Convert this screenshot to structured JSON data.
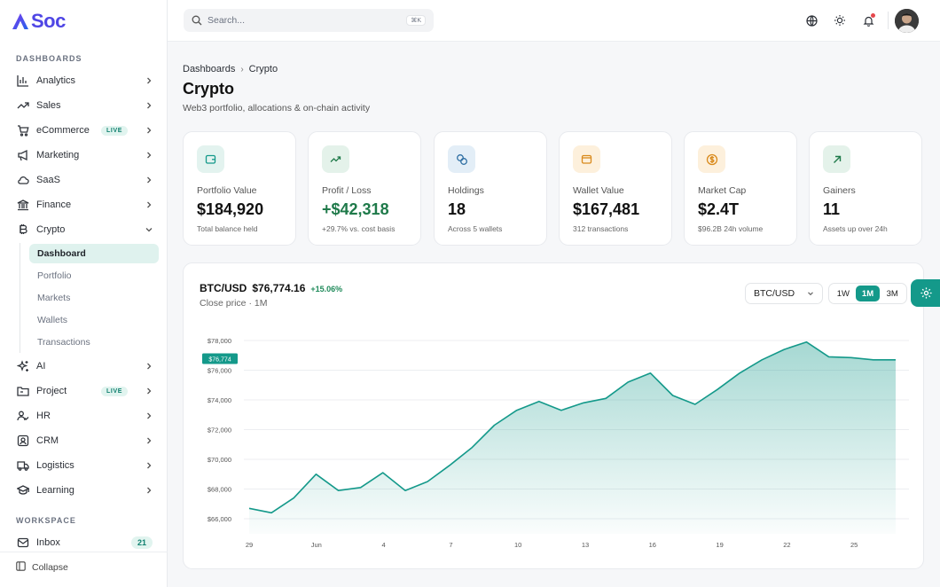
{
  "app": {
    "logo_text": "Soc"
  },
  "sidebar": {
    "section_dashboards": "DASHBOARDS",
    "items": [
      {
        "label": "Analytics",
        "icon": "bar-chart-icon"
      },
      {
        "label": "Sales",
        "icon": "trending-up-icon"
      },
      {
        "label": "eCommerce",
        "icon": "cart-icon",
        "badge": "LIVE"
      },
      {
        "label": "Marketing",
        "icon": "megaphone-icon"
      },
      {
        "label": "SaaS",
        "icon": "cloud-icon"
      },
      {
        "label": "Finance",
        "icon": "bank-icon"
      },
      {
        "label": "Crypto",
        "icon": "bitcoin-icon",
        "expanded": true
      },
      {
        "label": "AI",
        "icon": "sparkles-icon"
      },
      {
        "label": "Project",
        "icon": "folder-icon",
        "badge": "LIVE"
      },
      {
        "label": "HR",
        "icon": "users-icon"
      },
      {
        "label": "CRM",
        "icon": "contact-icon"
      },
      {
        "label": "Logistics",
        "icon": "truck-icon"
      },
      {
        "label": "Learning",
        "icon": "graduation-cap-icon"
      }
    ],
    "crypto_sub": [
      "Dashboard",
      "Portfolio",
      "Markets",
      "Wallets",
      "Transactions"
    ],
    "section_workspace": "WORKSPACE",
    "inbox": {
      "label": "Inbox",
      "count": "21"
    },
    "collapse_label": "Collapse"
  },
  "topbar": {
    "search_placeholder": "Search...",
    "shortcut": "⌘K"
  },
  "breadcrumb": [
    "Dashboards",
    "Crypto"
  ],
  "page": {
    "title": "Crypto",
    "subtitle": "Web3 portfolio, allocations & on-chain activity"
  },
  "cards": [
    {
      "label": "Portfolio Value",
      "value": "$184,920",
      "sub": "Total balance held",
      "icon": "wallet-icon",
      "icon_bg": "#e3f3ef",
      "icon_color": "#14998a"
    },
    {
      "label": "Profit / Loss",
      "value": "+$42,318",
      "sub": "+29.7% vs. cost basis",
      "icon": "trending-up-icon",
      "icon_bg": "#e4f2ea",
      "icon_color": "#1f7a4a",
      "positive": true
    },
    {
      "label": "Holdings",
      "value": "18",
      "sub": "Across 5 wallets",
      "icon": "coins-icon",
      "icon_bg": "#e3eef7",
      "icon_color": "#2f6fa3"
    },
    {
      "label": "Wallet Value",
      "value": "$167,481",
      "sub": "312 transactions",
      "icon": "wallet-icon",
      "icon_bg": "#fdf0dc",
      "icon_color": "#d98a1c"
    },
    {
      "label": "Market Cap",
      "value": "$2.4T",
      "sub": "$96.2B 24h volume",
      "icon": "dollar-coin-icon",
      "icon_bg": "#fdf0dc",
      "icon_color": "#d98a1c"
    },
    {
      "label": "Gainers",
      "value": "11",
      "sub": "Assets up over 24h",
      "icon": "arrow-up-right-icon",
      "icon_bg": "#e4f2ea",
      "icon_color": "#1f7a4a"
    }
  ],
  "chart_panel": {
    "pair": "BTC/USD",
    "price": "$76,774.16",
    "change": "+15.06%",
    "subtitle": "Close price · 1M",
    "select_value": "BTC/USD",
    "ranges": [
      "1W",
      "1M",
      "3M"
    ],
    "active_range": "1M"
  },
  "chart_data": {
    "type": "area",
    "x_ticks": [
      "29",
      "Jun",
      "4",
      "7",
      "10",
      "13",
      "16",
      "19",
      "22",
      "25"
    ],
    "y_ticks": [
      "$66,000",
      "$68,000",
      "$70,000",
      "$72,000",
      "$74,000",
      "$76,000",
      "$78,000"
    ],
    "ylim": [
      65000,
      78500
    ],
    "current_label": "$76,774",
    "current_value": 76774,
    "color": "#14998a",
    "values": [
      66700,
      66400,
      67400,
      69000,
      67900,
      68100,
      69100,
      67900,
      68500,
      69600,
      70800,
      72300,
      73300,
      73900,
      73300,
      73800,
      74100,
      75200,
      75800,
      74300,
      73700,
      74700,
      75800,
      76700,
      77400,
      77900,
      76900,
      76850,
      76700,
      76700
    ]
  }
}
